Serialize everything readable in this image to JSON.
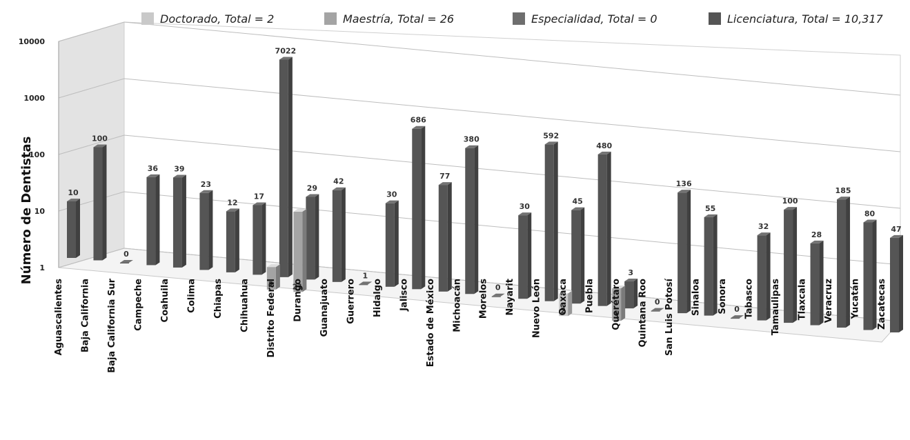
{
  "chart_data": {
    "type": "bar",
    "ylabel": "Número de Dentistas",
    "xlabel": "",
    "y_scale": "log",
    "ylim": [
      1,
      10000
    ],
    "y_ticks": [
      "1",
      "10",
      "100",
      "1000",
      "10000"
    ],
    "categories": [
      "Aguascalientes",
      "Baja California",
      "Baja California Sur",
      "Campeche",
      "Coahuila",
      "Colima",
      "Chiapas",
      "Chihuahua",
      "Distrito Federal",
      "Durango",
      "Guanajuato",
      "Guerrero",
      "Hidalgo",
      "Jalisco",
      "Estado de México",
      "Michoacán",
      "Morelos",
      "Nayarit",
      "Nuevo León",
      "Oaxaca",
      "Puebla",
      "Querétaro",
      "Quintana Roo",
      "San Luis Potosí",
      "Sinaloa",
      "Sonora",
      "Tabasco",
      "Tamaulipas",
      "Tlaxcala",
      "Veracruz",
      "Yucatán",
      "Zacatecas"
    ],
    "legend_position": "top",
    "series": [
      {
        "name": "Doctorado, Total = 2",
        "color": "#c9c9c9",
        "values": [
          null,
          null,
          null,
          null,
          null,
          null,
          null,
          null,
          null,
          null,
          null,
          null,
          null,
          null,
          null,
          null,
          null,
          null,
          null,
          2,
          null,
          null,
          null,
          null,
          null,
          null,
          null,
          null,
          null,
          null,
          null,
          null
        ]
      },
      {
        "name": "Maestría, Total = 26",
        "color": "#a4a4a4",
        "values": [
          null,
          null,
          null,
          null,
          null,
          null,
          null,
          null,
          2,
          21,
          null,
          null,
          null,
          null,
          null,
          null,
          null,
          null,
          null,
          null,
          null,
          3,
          null,
          null,
          null,
          null,
          null,
          null,
          null,
          null,
          null,
          null
        ]
      },
      {
        "name": "Especialidad, Total = 0",
        "color": "#6e6e6e",
        "values": [
          null,
          null,
          null,
          null,
          null,
          null,
          null,
          null,
          null,
          null,
          null,
          null,
          null,
          null,
          null,
          null,
          null,
          null,
          null,
          null,
          null,
          null,
          null,
          null,
          null,
          null,
          null,
          null,
          null,
          null,
          null,
          null
        ]
      },
      {
        "name": "Licenciatura, Total = 10,317",
        "color": "#555555",
        "values": [
          10,
          100,
          0,
          36,
          39,
          23,
          12,
          17,
          7022,
          29,
          42,
          1,
          30,
          686,
          77,
          380,
          0,
          30,
          592,
          45,
          480,
          3,
          0,
          136,
          55,
          0,
          32,
          100,
          28,
          185,
          80,
          47
        ]
      }
    ]
  }
}
